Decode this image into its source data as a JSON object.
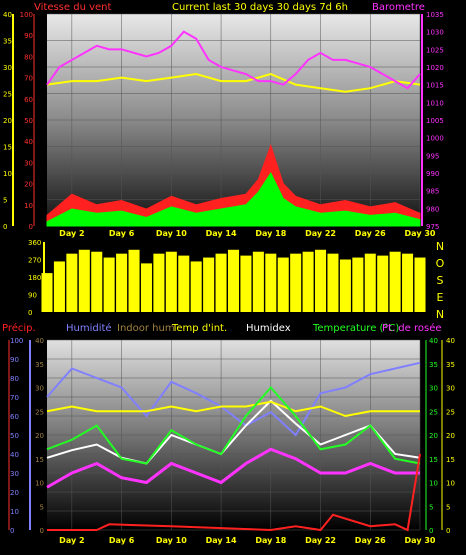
{
  "header": {
    "wind_title": "Vitesse du vent",
    "current_title": "Current last 30 days 30 days 7d 6h",
    "barometer_title": "Barometre",
    "title_color_wind": "#ff3030",
    "title_color_current": "#ffff00",
    "title_color_baro": "#ff33ff"
  },
  "direction_letters": [
    "N",
    "O",
    "S",
    "E",
    "N"
  ],
  "bottom_legend": [
    {
      "label": "Précip.",
      "color": "#ff2020"
    },
    {
      "label": "Humidité",
      "color": "#8080ff"
    },
    {
      "label": "Indoor hum",
      "color": "#a08040"
    },
    {
      "label": "Temp d'int.",
      "color": "#ffff00"
    },
    {
      "label": "Humidex",
      "color": "#ffffff"
    },
    {
      "label": "Temperature (°C)",
      "color": "#22ff22"
    },
    {
      "label": "Pt. de rosée",
      "color": "#ff33ff"
    }
  ],
  "chart_data": [
    {
      "type": "area",
      "name": "wind-barometer",
      "x_ticks": [
        "Day 2",
        "Day 6",
        "Day 10",
        "Day 14",
        "Day 18",
        "Day 22",
        "Day 26",
        "Day 30"
      ],
      "x_range": [
        0,
        30
      ],
      "y_left": {
        "ticks": [
          0,
          5,
          10,
          15,
          20,
          25,
          30,
          35,
          40
        ],
        "range": [
          0,
          40
        ]
      },
      "y_mid": {
        "ticks": [
          0,
          10,
          20,
          30,
          40,
          50,
          60,
          70,
          80,
          90,
          100
        ],
        "range": [
          0,
          100
        ]
      },
      "y_right": {
        "ticks": [
          975,
          980,
          985,
          990,
          995,
          1000,
          1005,
          1010,
          1015,
          1020,
          1025,
          1030,
          1035
        ],
        "range": [
          975,
          1035
        ]
      },
      "series": [
        {
          "name": "gust",
          "color": "#ff2020",
          "axis": "mid",
          "x": [
            0,
            2,
            4,
            6,
            8,
            10,
            12,
            14,
            16,
            17,
            18,
            19,
            20,
            22,
            24,
            26,
            28,
            30
          ],
          "values": [
            5,
            15,
            10,
            12,
            8,
            14,
            10,
            13,
            15,
            22,
            38,
            20,
            14,
            10,
            12,
            9,
            11,
            6
          ]
        },
        {
          "name": "wind",
          "color": "#00ff00",
          "axis": "mid",
          "x": [
            0,
            2,
            4,
            6,
            8,
            10,
            12,
            14,
            16,
            17,
            18,
            19,
            20,
            22,
            24,
            26,
            28,
            30
          ],
          "values": [
            2,
            8,
            6,
            7,
            4,
            9,
            6,
            8,
            10,
            16,
            25,
            13,
            9,
            6,
            7,
            5,
            6,
            3
          ]
        },
        {
          "name": "temp",
          "color": "#ffff00",
          "axis": "right",
          "x": [
            0,
            2,
            4,
            6,
            8,
            10,
            12,
            14,
            16,
            18,
            20,
            22,
            24,
            26,
            28,
            30
          ],
          "values": [
            1015,
            1016,
            1016,
            1017,
            1016,
            1017,
            1018,
            1016,
            1016,
            1018,
            1015,
            1014,
            1013,
            1014,
            1016,
            1015
          ]
        },
        {
          "name": "baro",
          "color": "#ff33ff",
          "axis": "right",
          "x": [
            0,
            1,
            2,
            3,
            4,
            5,
            6,
            7,
            8,
            9,
            10,
            11,
            12,
            13,
            14,
            15,
            16,
            17,
            18,
            19,
            20,
            21,
            22,
            23,
            24,
            25,
            26,
            27,
            28,
            29,
            30
          ],
          "values": [
            1015,
            1020,
            1022,
            1024,
            1026,
            1025,
            1025,
            1024,
            1023,
            1024,
            1026,
            1030,
            1028,
            1022,
            1020,
            1019,
            1018,
            1016,
            1016,
            1015,
            1018,
            1022,
            1024,
            1022,
            1022,
            1021,
            1020,
            1018,
            1016,
            1014,
            1018
          ]
        }
      ]
    },
    {
      "type": "bar",
      "name": "wind-direction",
      "y_ticks": [
        0,
        90,
        180,
        270,
        360
      ],
      "y_range": [
        0,
        360
      ],
      "x_range": [
        0,
        30
      ],
      "series": [
        {
          "name": "direction",
          "color": "#ffff00",
          "x": [
            0,
            1,
            2,
            3,
            4,
            5,
            6,
            7,
            8,
            9,
            10,
            11,
            12,
            13,
            14,
            15,
            16,
            17,
            18,
            19,
            20,
            21,
            22,
            23,
            24,
            25,
            26,
            27,
            28,
            29,
            30
          ],
          "values": [
            200,
            260,
            300,
            320,
            310,
            280,
            300,
            320,
            250,
            300,
            310,
            290,
            260,
            280,
            300,
            320,
            290,
            310,
            300,
            280,
            300,
            310,
            320,
            300,
            270,
            280,
            300,
            290,
            310,
            300,
            280
          ]
        }
      ]
    },
    {
      "type": "line",
      "name": "temperature-humidity",
      "x_ticks": [
        "Day 2",
        "Day 6",
        "Day 10",
        "Day 14",
        "Day 18",
        "Day 22",
        "Day 26",
        "Day 30"
      ],
      "x_range": [
        0,
        30
      ],
      "y_left": {
        "ticks": [
          0,
          10,
          20,
          30,
          40,
          50,
          60,
          70,
          80,
          90,
          100
        ],
        "range": [
          0,
          100
        ]
      },
      "y_left2": {
        "ticks": [
          0,
          5,
          10,
          15,
          20,
          25,
          30,
          35,
          40
        ],
        "range": [
          0,
          40
        ]
      },
      "y_right": {
        "ticks": [
          0,
          5,
          10,
          15,
          20,
          25,
          30,
          35,
          40
        ],
        "range": [
          0,
          40
        ]
      },
      "series": [
        {
          "name": "humidity",
          "color": "#8080ff",
          "x": [
            0,
            2,
            4,
            6,
            8,
            10,
            12,
            14,
            16,
            18,
            20,
            22,
            24,
            26,
            28,
            30
          ],
          "values": [
            70,
            85,
            80,
            75,
            60,
            78,
            72,
            65,
            55,
            62,
            50,
            72,
            75,
            82,
            85,
            88
          ]
        },
        {
          "name": "humidex",
          "color": "#ffffff",
          "x": [
            0,
            2,
            4,
            6,
            8,
            10,
            12,
            14,
            16,
            18,
            20,
            22,
            24,
            26,
            28,
            30
          ],
          "values": [
            38,
            42,
            45,
            38,
            35,
            50,
            45,
            40,
            55,
            68,
            56,
            45,
            50,
            55,
            40,
            38
          ]
        },
        {
          "name": "indoor-temp",
          "color": "#ffff00",
          "x": [
            0,
            2,
            4,
            6,
            8,
            10,
            12,
            14,
            16,
            18,
            20,
            22,
            24,
            26,
            28,
            30
          ],
          "values": [
            25,
            26,
            25,
            25,
            25,
            26,
            25,
            26,
            26,
            27,
            25,
            26,
            24,
            25,
            25,
            25
          ]
        },
        {
          "name": "temperature",
          "color": "#22ff22",
          "x": [
            0,
            2,
            4,
            6,
            8,
            10,
            12,
            14,
            16,
            18,
            20,
            22,
            24,
            26,
            28,
            30
          ],
          "values": [
            17,
            19,
            22,
            15,
            14,
            21,
            18,
            16,
            24,
            30,
            24,
            17,
            18,
            22,
            15,
            14
          ]
        },
        {
          "name": "dewpoint",
          "color": "#ff33ff",
          "x": [
            0,
            2,
            4,
            6,
            8,
            10,
            12,
            14,
            16,
            18,
            20,
            22,
            24,
            26,
            28,
            30
          ],
          "values": [
            9,
            12,
            14,
            11,
            10,
            14,
            12,
            10,
            14,
            17,
            15,
            12,
            12,
            14,
            12,
            12
          ]
        },
        {
          "name": "precip",
          "color": "#ff2020",
          "x": [
            0,
            4,
            5,
            10,
            18,
            20,
            22,
            23,
            26,
            28,
            29,
            30
          ],
          "values": [
            0,
            0,
            3,
            2,
            0,
            2,
            0,
            8,
            2,
            3,
            0,
            40
          ]
        }
      ]
    }
  ]
}
